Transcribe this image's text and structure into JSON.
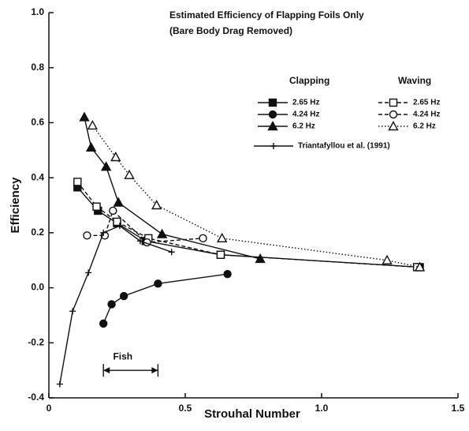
{
  "chart_data": {
    "type": "line",
    "title": "Estimated Efficiency of Flapping Foils Only",
    "subtitle": "(Bare Body Drag Removed)",
    "x_label": "Strouhal Number",
    "y_label": "Efficiency",
    "xlim": [
      0,
      1.5
    ],
    "ylim": [
      -0.4,
      1.0
    ],
    "xticks": [
      0,
      0.5,
      {
        "value": 1,
        "label": "1.0"
      },
      1.5
    ],
    "yticks": [
      -0.4,
      -0.2,
      {
        "value": 0,
        "label": "0.0"
      },
      0.2,
      0.4,
      0.6,
      0.8,
      {
        "value": 1,
        "label": "1.0"
      }
    ],
    "legend_groups": [
      "Clapping",
      "Waving"
    ],
    "series": [
      {
        "name": "2.65 Hz",
        "group": 0,
        "color": "#111111",
        "marker": "square",
        "filled": true,
        "dash": "solid",
        "x": [
          0.105,
          0.18,
          0.25,
          0.355,
          0.63,
          1.36
        ],
        "values": [
          0.365,
          0.28,
          0.235,
          0.17,
          0.12,
          0.075
        ]
      },
      {
        "name": "4.24 Hz",
        "group": 0,
        "color": "#111111",
        "marker": "circle",
        "filled": true,
        "dash": "solid",
        "x": [
          0.2,
          0.23,
          0.275,
          0.4,
          0.655
        ],
        "values": [
          -0.13,
          -0.06,
          -0.03,
          0.015,
          0.05
        ]
      },
      {
        "name": "6.2 Hz",
        "group": 0,
        "color": "#111111",
        "marker": "triangle",
        "filled": true,
        "dash": "solid",
        "x": [
          0.13,
          0.155,
          0.21,
          0.255,
          0.415,
          0.775
        ],
        "values": [
          0.62,
          0.51,
          0.44,
          0.31,
          0.195,
          0.105
        ]
      },
      {
        "name": "2.65 Hz",
        "group": 1,
        "color": "#111111",
        "marker": "square",
        "filled": false,
        "dash": "dashed",
        "x": [
          0.105,
          0.175,
          0.25,
          0.365,
          0.63,
          1.35
        ],
        "values": [
          0.385,
          0.295,
          0.24,
          0.18,
          0.12,
          0.075
        ]
      },
      {
        "name": "4.24 Hz",
        "group": 1,
        "color": "#111111",
        "marker": "circle",
        "filled": false,
        "dash": "dashed",
        "x": [
          0.14,
          0.205,
          0.235,
          0.36,
          0.565
        ],
        "values": [
          0.19,
          0.19,
          0.28,
          0.165,
          0.18
        ]
      },
      {
        "name": "6.2 Hz",
        "group": 1,
        "color": "#111111",
        "marker": "triangle",
        "filled": false,
        "dash": "dotted",
        "x": [
          0.16,
          0.245,
          0.295,
          0.395,
          0.635,
          1.24,
          1.36
        ],
        "values": [
          0.59,
          0.475,
          0.41,
          0.3,
          0.18,
          0.1,
          0.075
        ]
      },
      {
        "name": "Triantafyllou et al. (1991)",
        "color": "#111111",
        "marker": "plus",
        "filled": false,
        "dash": "solid",
        "x": [
          0.04,
          0.087,
          0.145,
          0.2,
          0.26,
          0.335,
          0.45
        ],
        "values": [
          -0.35,
          -0.085,
          0.055,
          0.2,
          0.225,
          0.17,
          0.13
        ]
      }
    ],
    "annotation": {
      "text": "Fish",
      "x": [
        0.2,
        0.4
      ],
      "y": -0.3
    }
  }
}
